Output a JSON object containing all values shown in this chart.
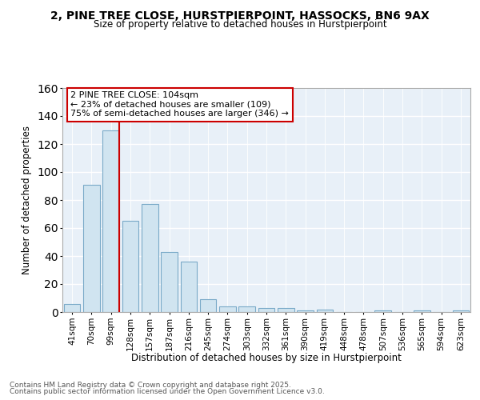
{
  "title1": "2, PINE TREE CLOSE, HURSTPIERPOINT, HASSOCKS, BN6 9AX",
  "title2": "Size of property relative to detached houses in Hurstpierpoint",
  "xlabel": "Distribution of detached houses by size in Hurstpierpoint",
  "ylabel": "Number of detached properties",
  "categories": [
    "41sqm",
    "70sqm",
    "99sqm",
    "128sqm",
    "157sqm",
    "187sqm",
    "216sqm",
    "245sqm",
    "274sqm",
    "303sqm",
    "332sqm",
    "361sqm",
    "390sqm",
    "419sqm",
    "448sqm",
    "478sqm",
    "507sqm",
    "536sqm",
    "565sqm",
    "594sqm",
    "623sqm"
  ],
  "values": [
    6,
    91,
    130,
    65,
    77,
    43,
    36,
    9,
    4,
    4,
    3,
    3,
    1,
    2,
    0,
    0,
    1,
    0,
    1,
    0,
    1
  ],
  "bar_color": "#d0e4f0",
  "bar_edge_color": "#7aaac8",
  "annotation_text": "2 PINE TREE CLOSE: 104sqm\n← 23% of detached houses are smaller (109)\n75% of semi-detached houses are larger (346) →",
  "annotation_box_color": "#ffffff",
  "annotation_box_edge": "#cc0000",
  "line_color": "#cc0000",
  "ylim": [
    0,
    160
  ],
  "yticks": [
    0,
    20,
    40,
    60,
    80,
    100,
    120,
    140,
    160
  ],
  "footer1": "Contains HM Land Registry data © Crown copyright and database right 2025.",
  "footer2": "Contains public sector information licensed under the Open Government Licence v3.0.",
  "fig_bg_color": "#ffffff",
  "plot_bg_color": "#e8f0f8"
}
